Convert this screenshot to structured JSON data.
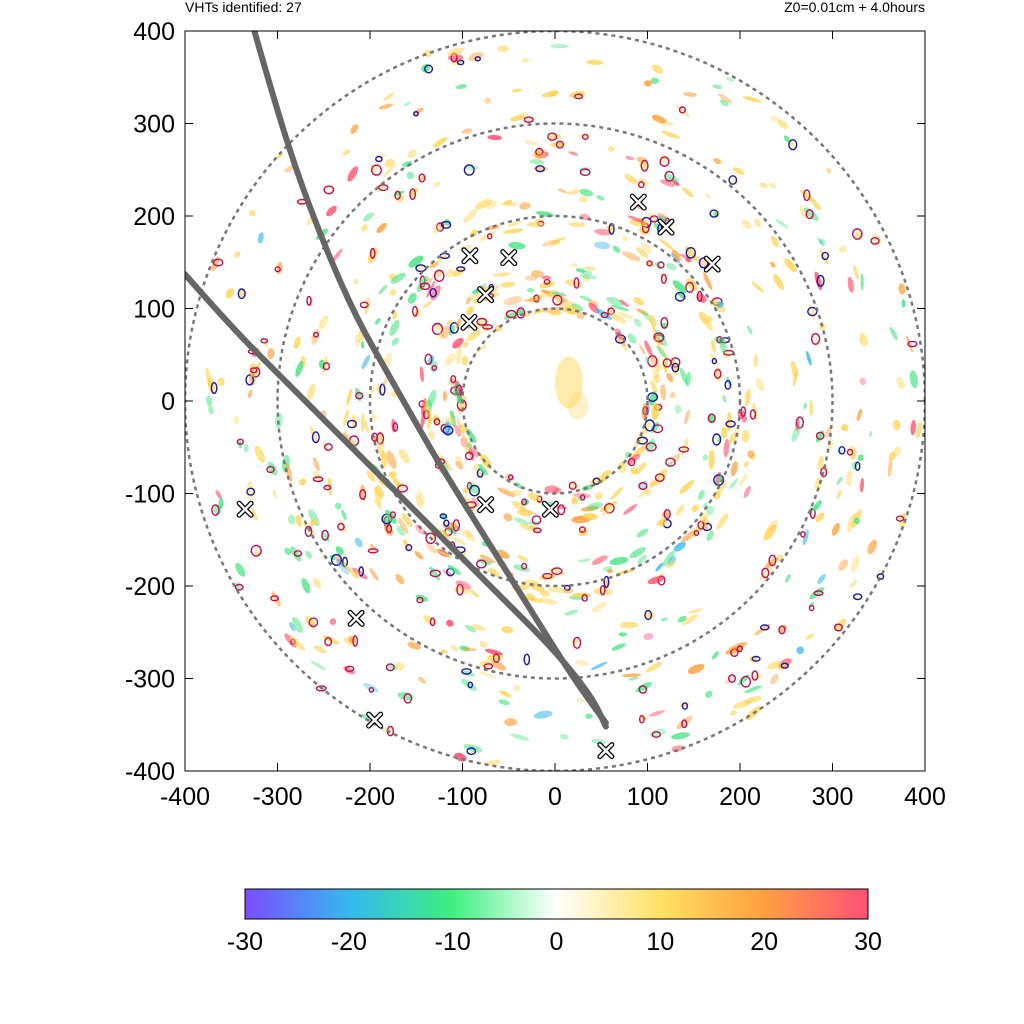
{
  "header": {
    "left_text": "VHTs identified: 27",
    "right_text": "Z0=0.01cm  + 4.0hours"
  },
  "chart_data": {
    "type": "scatter",
    "title": "",
    "xlabel": "",
    "ylabel": "",
    "xlim": [
      -400,
      400
    ],
    "ylim": [
      -400,
      400
    ],
    "x_ticks": [
      -400,
      -300,
      -200,
      -100,
      0,
      100,
      200,
      300,
      400
    ],
    "y_ticks": [
      -400,
      -300,
      -200,
      -100,
      0,
      100,
      200,
      300,
      400
    ],
    "grid": false,
    "range_rings": [
      100,
      200,
      300,
      400
    ],
    "vht_count": 27,
    "vht_markers": [
      [
        -92,
        157
      ],
      [
        -50,
        155
      ],
      [
        -75,
        115
      ],
      [
        -93,
        85
      ],
      [
        90,
        215
      ],
      [
        120,
        188
      ],
      [
        170,
        148
      ],
      [
        -75,
        -112
      ],
      [
        -5,
        -117
      ],
      [
        -335,
        -117
      ],
      [
        -215,
        -235
      ],
      [
        -195,
        -345
      ],
      [
        55,
        -378
      ]
    ],
    "tracks": [
      {
        "points": [
          [
            -325,
            400
          ],
          [
            -305,
            330
          ],
          [
            -280,
            250
          ],
          [
            -250,
            170
          ],
          [
            -215,
            90
          ],
          [
            -175,
            20
          ],
          [
            -130,
            -60
          ],
          [
            -80,
            -140
          ],
          [
            -30,
            -220
          ],
          [
            20,
            -300
          ],
          [
            55,
            -348
          ]
        ]
      },
      {
        "points": [
          [
            -400,
            137
          ],
          [
            -350,
            80
          ],
          [
            -290,
            20
          ],
          [
            -230,
            -40
          ],
          [
            -170,
            -100
          ],
          [
            -120,
            -150
          ],
          [
            -60,
            -210
          ],
          [
            0,
            -270
          ],
          [
            40,
            -320
          ],
          [
            55,
            -352
          ]
        ]
      }
    ],
    "colorbar": {
      "min": -30,
      "max": 30,
      "ticks": [
        -30,
        -20,
        -10,
        0,
        10,
        20,
        30
      ],
      "colors": [
        "#7b4dff",
        "#35b8f0",
        "#3ef080",
        "#ffffff",
        "#ffe064",
        "#ffa040",
        "#ff5077"
      ]
    },
    "contour_colors": [
      "#1a1aa0",
      "#c01050"
    ],
    "field_colors": [
      "#ffd24a",
      "#ff9a30",
      "#ff4060",
      "#3ee27a",
      "#33b8e8"
    ]
  }
}
